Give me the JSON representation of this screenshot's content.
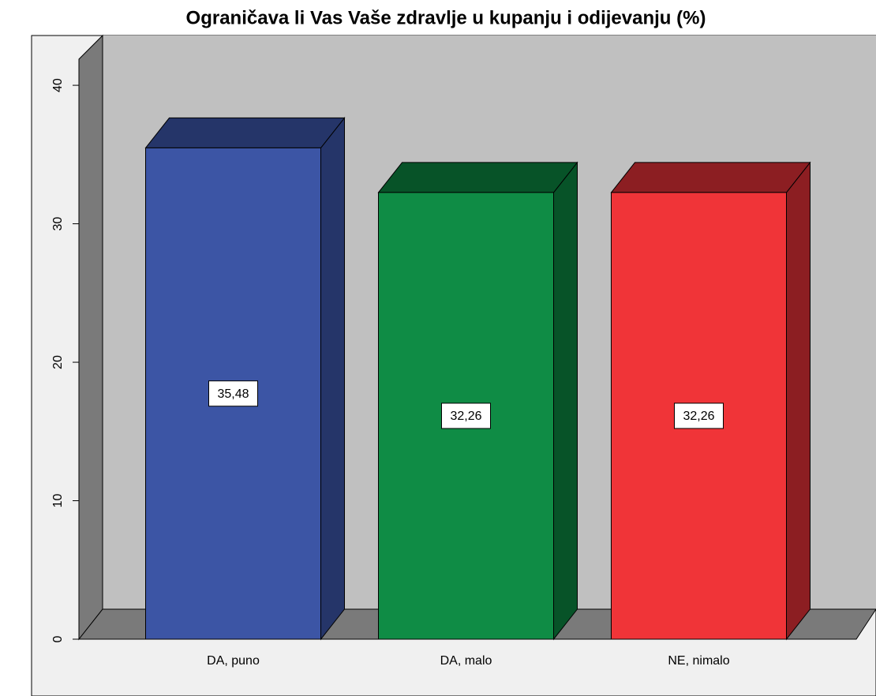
{
  "chart_data": {
    "type": "bar3d",
    "title": "Ograničava li Vas Vaše zdravlje u kupanju i odijevanju (%)",
    "categories": [
      "DA, puno",
      "DA, malo",
      "NE, nimalo"
    ],
    "values": [
      35.48,
      32.26,
      32.26
    ],
    "value_labels": [
      "35,48",
      "32,26",
      "32,26"
    ],
    "colors": [
      "#3c55a5",
      "#0f8c45",
      "#f03438"
    ],
    "side_colors": [
      "#253569",
      "#075328",
      "#8c1e22"
    ],
    "ylim": [
      0,
      42
    ],
    "yticks": [
      0,
      10,
      20,
      30,
      40
    ],
    "grid": false
  }
}
